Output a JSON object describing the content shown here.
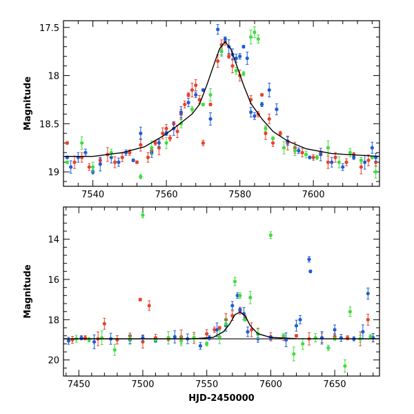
{
  "chart_data": [
    {
      "type": "scatter",
      "title": "",
      "xlabel": "",
      "ylabel": "Magnitude",
      "xlim": [
        7532,
        7618
      ],
      "ylim": [
        19.15,
        17.43
      ],
      "y_inverted": true,
      "xticks": [
        7540,
        7560,
        7580,
        7600
      ],
      "yticks": [
        17.5,
        18,
        18.5,
        19
      ],
      "colors": {
        "red": "#e8422b",
        "blue": "#1f5bd6",
        "green": "#3fdc3f",
        "model": "#000000"
      },
      "model_curve": [
        [
          7532,
          18.84
        ],
        [
          7540,
          18.84
        ],
        [
          7548,
          18.8
        ],
        [
          7554,
          18.74
        ],
        [
          7559,
          18.63
        ],
        [
          7563,
          18.52
        ],
        [
          7567,
          18.4
        ],
        [
          7569,
          18.3
        ],
        [
          7571,
          18.1
        ],
        [
          7573,
          17.88
        ],
        [
          7574.5,
          17.72
        ],
        [
          7576,
          17.65
        ],
        [
          7577.5,
          17.72
        ],
        [
          7579,
          17.88
        ],
        [
          7581,
          18.1
        ],
        [
          7583,
          18.29
        ],
        [
          7586,
          18.45
        ],
        [
          7589,
          18.58
        ],
        [
          7593,
          18.68
        ],
        [
          7598,
          18.76
        ],
        [
          7605,
          18.81
        ],
        [
          7618,
          18.84
        ]
      ],
      "series": [
        {
          "color": "red",
          "points": [
            [
              7533,
              18.7
            ],
            [
              7535,
              18.9
            ],
            [
              7537,
              18.85
            ],
            [
              7539,
              18.95
            ],
            [
              7542,
              18.88
            ],
            [
              7544,
              18.82
            ],
            [
              7546,
              18.9
            ],
            [
              7548,
              18.85
            ],
            [
              7550,
              18.8
            ],
            [
              7552,
              18.9
            ],
            [
              7553,
              18.72
            ],
            [
              7555,
              18.85
            ],
            [
              7556,
              18.78
            ],
            [
              7557,
              18.7
            ],
            [
              7558,
              18.75
            ],
            [
              7559,
              18.6
            ],
            [
              7560,
              18.55
            ],
            [
              7561,
              18.65
            ],
            [
              7562,
              18.5
            ],
            [
              7563,
              18.58
            ],
            [
              7564,
              18.4
            ],
            [
              7565,
              18.3
            ],
            [
              7566,
              18.2
            ],
            [
              7567,
              18.15
            ],
            [
              7568,
              18.1
            ],
            [
              7569,
              18.25
            ],
            [
              7570,
              18.7
            ],
            [
              7572,
              18.3
            ],
            [
              7574,
              17.85
            ],
            [
              7575,
              17.68
            ],
            [
              7576,
              17.65
            ],
            [
              7577,
              17.8
            ],
            [
              7578,
              17.9
            ],
            [
              7580,
              18.0
            ],
            [
              7583,
              18.25
            ],
            [
              7585,
              18.4
            ],
            [
              7586,
              18.2
            ],
            [
              7587,
              18.6
            ],
            [
              7588,
              18.45
            ],
            [
              7589,
              18.7
            ],
            [
              7591,
              18.6
            ],
            [
              7593,
              18.7
            ],
            [
              7595,
              18.75
            ],
            [
              7597,
              18.8
            ],
            [
              7600,
              18.85
            ],
            [
              7602,
              18.8
            ],
            [
              7604,
              18.9
            ],
            [
              7606,
              18.85
            ],
            [
              7609,
              18.9
            ],
            [
              7611,
              18.82
            ],
            [
              7613,
              18.95
            ],
            [
              7615,
              18.88
            ],
            [
              7617,
              18.9
            ]
          ]
        },
        {
          "color": "blue",
          "points": [
            [
              7533,
              18.85
            ],
            [
              7534,
              18.95
            ],
            [
              7536,
              18.85
            ],
            [
              7538,
              18.8
            ],
            [
              7540,
              19.0
            ],
            [
              7542,
              18.92
            ],
            [
              7545,
              18.85
            ],
            [
              7547,
              18.9
            ],
            [
              7549,
              18.8
            ],
            [
              7551,
              18.88
            ],
            [
              7553,
              18.6
            ],
            [
              7556,
              18.8
            ],
            [
              7558,
              18.7
            ],
            [
              7560,
              18.6
            ],
            [
              7562,
              18.55
            ],
            [
              7564,
              18.38
            ],
            [
              7566,
              18.28
            ],
            [
              7568,
              18.2
            ],
            [
              7570,
              18.15
            ],
            [
              7572,
              18.45
            ],
            [
              7574,
              17.52
            ],
            [
              7575,
              17.75
            ],
            [
              7576,
              17.62
            ],
            [
              7577,
              17.7
            ],
            [
              7578,
              17.78
            ],
            [
              7579,
              17.82
            ],
            [
              7580,
              17.8
            ],
            [
              7581,
              17.7
            ],
            [
              7582,
              17.82
            ],
            [
              7583,
              18.38
            ],
            [
              7584,
              18.42
            ],
            [
              7586,
              18.3
            ],
            [
              7588,
              18.15
            ],
            [
              7590,
              18.35
            ],
            [
              7593,
              18.68
            ],
            [
              7596,
              18.78
            ],
            [
              7599,
              18.85
            ],
            [
              7602,
              18.82
            ],
            [
              7605,
              18.9
            ],
            [
              7608,
              18.95
            ],
            [
              7611,
              18.85
            ],
            [
              7614,
              18.9
            ],
            [
              7616,
              18.75
            ],
            [
              7617,
              18.85
            ]
          ]
        },
        {
          "color": "green",
          "points": [
            [
              7533,
              18.9
            ],
            [
              7537,
              18.7
            ],
            [
              7540,
              18.95
            ],
            [
              7545,
              18.8
            ],
            [
              7553,
              19.05
            ],
            [
              7556,
              18.75
            ],
            [
              7560,
              18.7
            ],
            [
              7564,
              18.5
            ],
            [
              7567,
              18.35
            ],
            [
              7570,
              18.3
            ],
            [
              7572,
              18.2
            ],
            [
              7575,
              17.75
            ],
            [
              7579,
              17.95
            ],
            [
              7581,
              17.98
            ],
            [
              7583,
              17.6
            ],
            [
              7584,
              17.55
            ],
            [
              7585,
              17.62
            ],
            [
              7587,
              18.55
            ],
            [
              7589,
              18.65
            ],
            [
              7592,
              18.75
            ],
            [
              7595,
              18.78
            ],
            [
              7598,
              18.82
            ],
            [
              7601,
              18.85
            ],
            [
              7604,
              18.75
            ],
            [
              7607,
              18.9
            ],
            [
              7610,
              18.8
            ],
            [
              7613,
              18.88
            ],
            [
              7616,
              18.85
            ],
            [
              7617,
              19.0
            ]
          ]
        }
      ]
    },
    {
      "type": "scatter",
      "title": "",
      "xlabel": "HJD-2450000",
      "ylabel": "Magnitude",
      "xlim": [
        7438,
        7685
      ],
      "ylim": [
        20.8,
        12.4
      ],
      "y_inverted": true,
      "xticks": [
        7450,
        7500,
        7550,
        7600,
        7650
      ],
      "yticks": [
        14,
        16,
        18,
        20
      ],
      "baseline": 18.95,
      "colors": {
        "red": "#e8422b",
        "blue": "#1f5bd6",
        "green": "#3fdc3f",
        "model": "#000000"
      },
      "model_curve": [
        [
          7438,
          18.95
        ],
        [
          7540,
          18.95
        ],
        [
          7555,
          18.88
        ],
        [
          7563,
          18.6
        ],
        [
          7568,
          18.2
        ],
        [
          7572,
          17.75
        ],
        [
          7576,
          17.62
        ],
        [
          7580,
          17.8
        ],
        [
          7584,
          18.3
        ],
        [
          7590,
          18.7
        ],
        [
          7600,
          18.88
        ],
        [
          7620,
          18.94
        ],
        [
          7685,
          18.95
        ]
      ],
      "series": [
        {
          "color": "red",
          "points": [
            [
              7445,
              19.0
            ],
            [
              7455,
              18.9
            ],
            [
              7465,
              18.95
            ],
            [
              7470,
              18.2
            ],
            [
              7480,
              19.0
            ],
            [
              7490,
              18.8
            ],
            [
              7498,
              17.0
            ],
            [
              7500,
              19.1
            ],
            [
              7505,
              17.3
            ],
            [
              7510,
              18.9
            ],
            [
              7520,
              18.95
            ],
            [
              7530,
              18.85
            ],
            [
              7540,
              18.9
            ],
            [
              7550,
              18.7
            ],
            [
              7556,
              18.5
            ],
            [
              7560,
              18.4
            ],
            [
              7565,
              18.0
            ],
            [
              7570,
              17.8
            ],
            [
              7576,
              17.55
            ],
            [
              7580,
              17.9
            ],
            [
              7585,
              18.5
            ],
            [
              7590,
              18.7
            ],
            [
              7600,
              18.85
            ],
            [
              7610,
              18.9
            ],
            [
              7620,
              18.8
            ],
            [
              7630,
              18.95
            ],
            [
              7640,
              18.9
            ],
            [
              7650,
              18.85
            ],
            [
              7660,
              18.9
            ],
            [
              7670,
              18.95
            ],
            [
              7676,
              18.0
            ],
            [
              7680,
              18.9
            ]
          ]
        },
        {
          "color": "blue",
          "points": [
            [
              7442,
              19.05
            ],
            [
              7452,
              18.9
            ],
            [
              7462,
              19.1
            ],
            [
              7475,
              18.95
            ],
            [
              7490,
              19.0
            ],
            [
              7500,
              18.9
            ],
            [
              7510,
              19.05
            ],
            [
              7525,
              18.85
            ],
            [
              7535,
              18.95
            ],
            [
              7545,
              19.3
            ],
            [
              7552,
              18.9
            ],
            [
              7558,
              18.5
            ],
            [
              7565,
              18.3
            ],
            [
              7570,
              17.3
            ],
            [
              7574,
              16.8
            ],
            [
              7576,
              17.5
            ],
            [
              7579,
              17.7
            ],
            [
              7582,
              18.6
            ],
            [
              7590,
              18.95
            ],
            [
              7600,
              18.9
            ],
            [
              7612,
              19.0
            ],
            [
              7620,
              18.3
            ],
            [
              7623,
              18.0
            ],
            [
              7630,
              15.0
            ],
            [
              7631,
              15.6
            ],
            [
              7640,
              18.9
            ],
            [
              7650,
              18.5
            ],
            [
              7655,
              18.9
            ],
            [
              7665,
              18.95
            ],
            [
              7672,
              18.6
            ],
            [
              7676,
              16.7
            ],
            [
              7680,
              18.9
            ]
          ]
        },
        {
          "color": "green",
          "points": [
            [
              7448,
              18.95
            ],
            [
              7458,
              19.0
            ],
            [
              7468,
              18.9
            ],
            [
              7478,
              19.5
            ],
            [
              7490,
              18.95
            ],
            [
              7500,
              12.8
            ],
            [
              7510,
              19.0
            ],
            [
              7520,
              18.9
            ],
            [
              7530,
              19.05
            ],
            [
              7540,
              18.9
            ],
            [
              7550,
              19.2
            ],
            [
              7560,
              18.85
            ],
            [
              7565,
              18.2
            ],
            [
              7572,
              16.1
            ],
            [
              7576,
              16.8
            ],
            [
              7580,
              18.0
            ],
            [
              7584,
              16.9
            ],
            [
              7590,
              18.7
            ],
            [
              7600,
              13.8
            ],
            [
              7610,
              18.8
            ],
            [
              7618,
              19.7
            ],
            [
              7625,
              19.2
            ],
            [
              7635,
              18.9
            ],
            [
              7645,
              19.4
            ],
            [
              7650,
              18.95
            ],
            [
              7658,
              20.3
            ],
            [
              7662,
              17.6
            ],
            [
              7670,
              18.95
            ],
            [
              7678,
              18.85
            ]
          ]
        }
      ]
    }
  ]
}
